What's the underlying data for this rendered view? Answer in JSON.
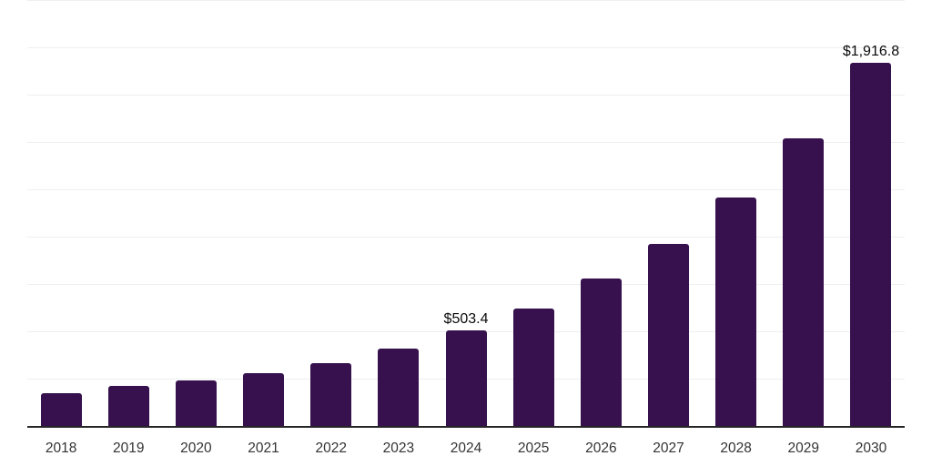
{
  "chart_data": {
    "type": "bar",
    "title": "",
    "xlabel": "",
    "ylabel": "",
    "categories": [
      "2018",
      "2019",
      "2020",
      "2021",
      "2022",
      "2023",
      "2024",
      "2025",
      "2026",
      "2027",
      "2028",
      "2029",
      "2030"
    ],
    "values": [
      173,
      214,
      241,
      280,
      331,
      408,
      503.4,
      618,
      781,
      962,
      1209,
      1521,
      1916.8
    ],
    "data_labels": {
      "2024": "$503.4",
      "2030": "$1,916.8"
    },
    "ylim": [
      0,
      2250
    ],
    "gridline_interval": 250,
    "grid": true,
    "legend": false,
    "y_axis_labels_visible": false,
    "colors": {
      "bar": "#36114D",
      "gridline": "#efefef",
      "axis_line": "#262626",
      "tick_label": "#333333",
      "data_label": "#0a0a0a",
      "background": "#ffffff"
    }
  }
}
